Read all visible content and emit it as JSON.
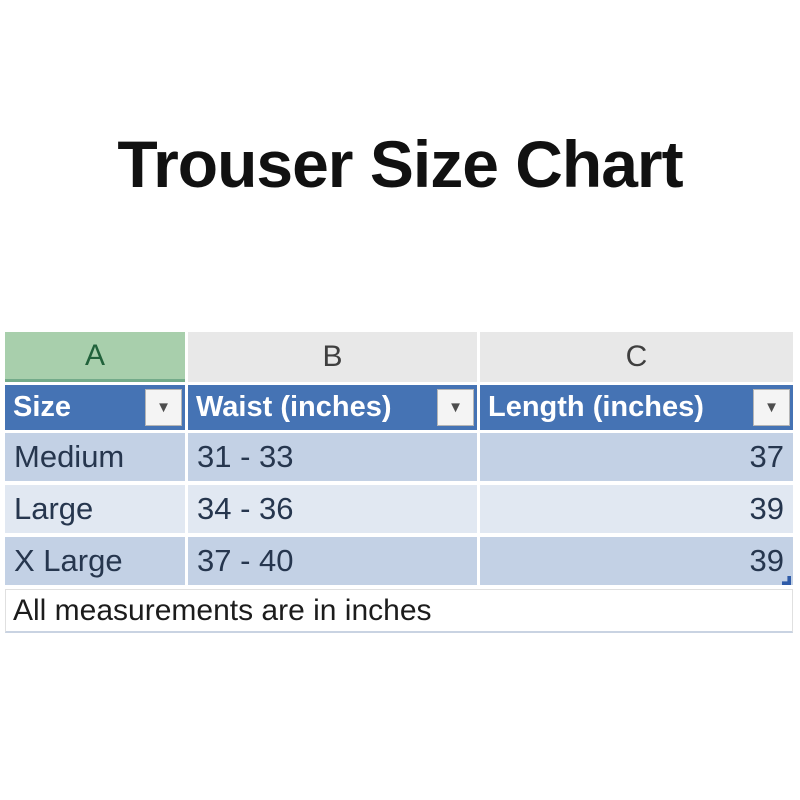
{
  "page": {
    "title": "Trouser Size Chart"
  },
  "spreadsheet": {
    "column_letters": {
      "a": "A",
      "b": "B",
      "c": "C"
    },
    "selected_column": "A",
    "headers": {
      "size": "Size",
      "waist": "Waist (inches)",
      "length": "Length (inches)"
    },
    "rows": [
      {
        "size": "Medium",
        "waist": "31 - 33",
        "length": "37"
      },
      {
        "size": "Large",
        "waist": "34 - 36",
        "length": "39"
      },
      {
        "size": "X Large",
        "waist": "37 - 40",
        "length": "39"
      }
    ],
    "footer_note": "All measurements are in inches",
    "icons": {
      "filter_dropdown": "▼"
    },
    "colors": {
      "header_fill": "#4573b4",
      "header_text": "#ffffff",
      "selected_column_fill": "#a8cfac",
      "selected_column_text": "#21623b",
      "column_letter_fill": "#e8e8e8",
      "row_band_dark": "#c3d1e5",
      "row_band_light": "#e1e8f2",
      "data_text": "#26364e",
      "resize_handle": "#2e5ba8"
    }
  }
}
